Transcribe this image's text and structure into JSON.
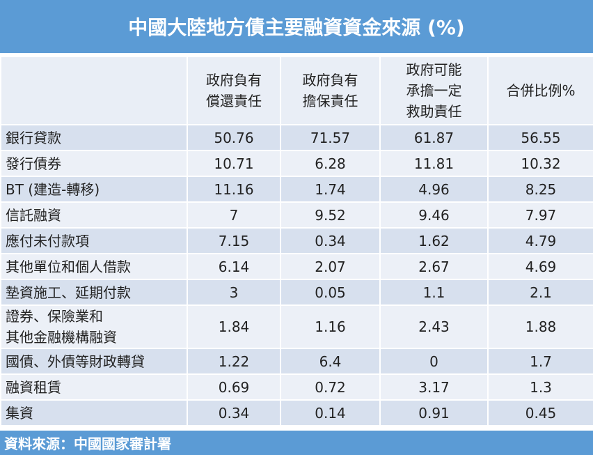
{
  "header": {
    "title": "中國大陸地方債主要融資資金來源 (%)"
  },
  "table": {
    "columns": [
      "",
      "政府負有\n償還責任",
      "政府負有\n擔保責任",
      "政府可能\n承擔一定\n救助責任",
      "合併比例%"
    ],
    "rows": [
      [
        "銀行貸款",
        50.76,
        71.57,
        61.87,
        56.55
      ],
      [
        "發行債券",
        10.71,
        6.28,
        11.81,
        10.32
      ],
      [
        "BT (建造-轉移)",
        11.16,
        1.74,
        4.96,
        8.25
      ],
      [
        "信託融資",
        7,
        9.52,
        9.46,
        7.97
      ],
      [
        "應付未付款項",
        7.15,
        0.34,
        1.62,
        4.79
      ],
      [
        "其他單位和個人借款",
        6.14,
        2.07,
        2.67,
        4.69
      ],
      [
        "墊資施工、延期付款",
        3,
        0.05,
        1.1,
        2.1
      ],
      [
        "證券、保險業和\n其他金融機構融資",
        1.84,
        1.16,
        2.43,
        1.88
      ],
      [
        "國債、外債等財政轉貸",
        1.22,
        6.4,
        0,
        1.7
      ],
      [
        "融資租賃",
        0.69,
        0.72,
        3.17,
        1.3
      ],
      [
        "集資",
        0.34,
        0.14,
        0.91,
        0.45
      ]
    ]
  },
  "footer": {
    "source": "資料來源：中國國家審計署"
  }
}
